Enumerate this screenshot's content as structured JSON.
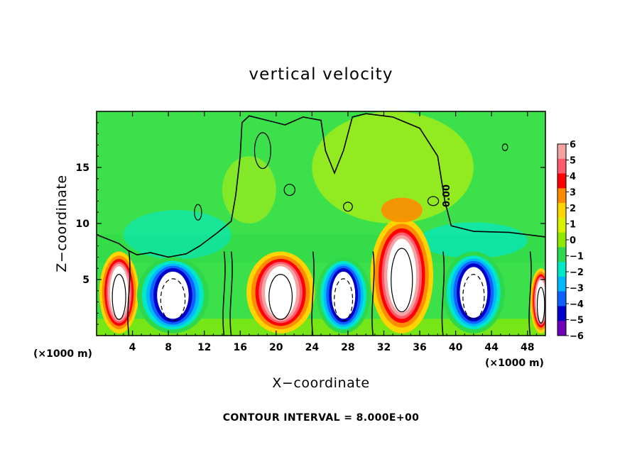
{
  "chart_data": {
    "type": "heatmap",
    "title": "vertical velocity",
    "xlabel": "X−coordinate",
    "ylabel": "Z−coordinate",
    "x_unit": "(×1000 m)",
    "y_unit": "(×1000 m)",
    "xlim": [
      0,
      50
    ],
    "ylim": [
      0,
      20
    ],
    "x_ticks": [
      4,
      8,
      12,
      16,
      20,
      24,
      28,
      32,
      36,
      40,
      44,
      48
    ],
    "y_ticks": [
      5,
      10,
      15
    ],
    "contour_interval_text": "CONTOUR INTERVAL = 8.000E+00",
    "contour_label": "0.00",
    "colorbar": {
      "levels": [
        6,
        5,
        4,
        3,
        2,
        1,
        0,
        -1,
        -2,
        -3,
        -4,
        -5,
        -6
      ],
      "level_labels": [
        "6",
        "5",
        "4",
        "3",
        "2",
        "1",
        "0",
        "−1",
        "−2",
        "−3",
        "−4",
        "−5",
        "−6"
      ],
      "colors": [
        "#f4a3a3",
        "#ff5a6e",
        "#ff0000",
        "#ff8c00",
        "#ffd400",
        "#d9f200",
        "#8fe800",
        "#2fd84a",
        "#00e8c8",
        "#00b8ff",
        "#1060ff",
        "#0000c8",
        "#7000b8"
      ]
    },
    "features": [
      {
        "kind": "updraft",
        "x_center": 2.5,
        "z_center": 3.8,
        "half_width": 2.2,
        "top": 7.5
      },
      {
        "kind": "downdraft",
        "x_center": 8.5,
        "z_center": 3.8,
        "half_width": 4.0,
        "top": 7.0
      },
      {
        "kind": "updraft",
        "x_center": 20.5,
        "z_center": 4.0,
        "half_width": 3.8,
        "top": 7.5
      },
      {
        "kind": "downdraft",
        "x_center": 27.5,
        "z_center": 3.8,
        "half_width": 3.0,
        "top": 7.0
      },
      {
        "kind": "updraft",
        "x_center": 34.0,
        "z_center": 5.0,
        "half_width": 3.5,
        "top": 10.5
      },
      {
        "kind": "downdraft",
        "x_center": 42.0,
        "z_center": 3.8,
        "half_width": 3.5,
        "top": 7.5
      },
      {
        "kind": "updraft",
        "x_center": 49.5,
        "z_center": 3.5,
        "half_width": 1.2,
        "top": 6.0
      }
    ]
  }
}
